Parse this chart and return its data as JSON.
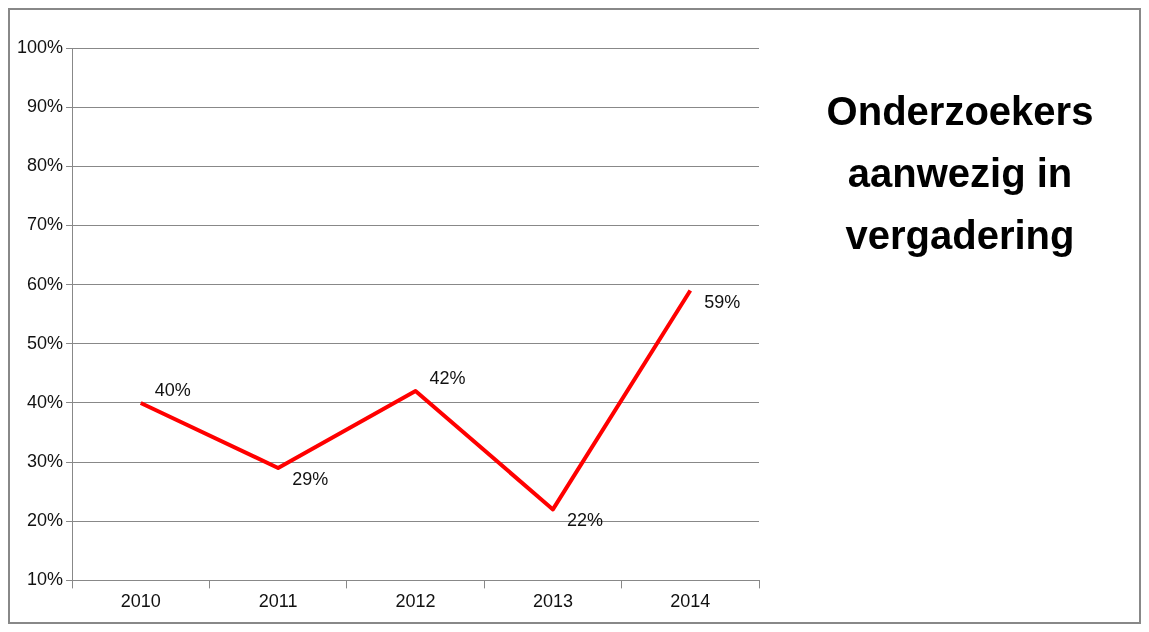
{
  "chart_data": {
    "type": "line",
    "title": "Onderzoekers aanwezig in vergadering",
    "categories": [
      "2010",
      "2011",
      "2012",
      "2013",
      "2014"
    ],
    "series": [
      {
        "color": "#ff0000",
        "values": [
          40,
          29,
          42,
          22,
          59
        ],
        "value_labels": [
          "40%",
          "29%",
          "42%",
          "22%",
          "59%"
        ]
      }
    ],
    "ylim": [
      10,
      100
    ],
    "yticks": [
      {
        "value": 10,
        "label": "10%"
      },
      {
        "value": 20,
        "label": "20%"
      },
      {
        "value": 30,
        "label": "30%"
      },
      {
        "value": 40,
        "label": "40%"
      },
      {
        "value": 50,
        "label": "50%"
      },
      {
        "value": 60,
        "label": "60%"
      },
      {
        "value": 70,
        "label": "70%"
      },
      {
        "value": 80,
        "label": "80%"
      },
      {
        "value": 90,
        "label": "90%"
      },
      {
        "value": 100,
        "label": "100%"
      }
    ],
    "grid": "y",
    "legend": false,
    "marker": "none",
    "line_style": "solid"
  }
}
